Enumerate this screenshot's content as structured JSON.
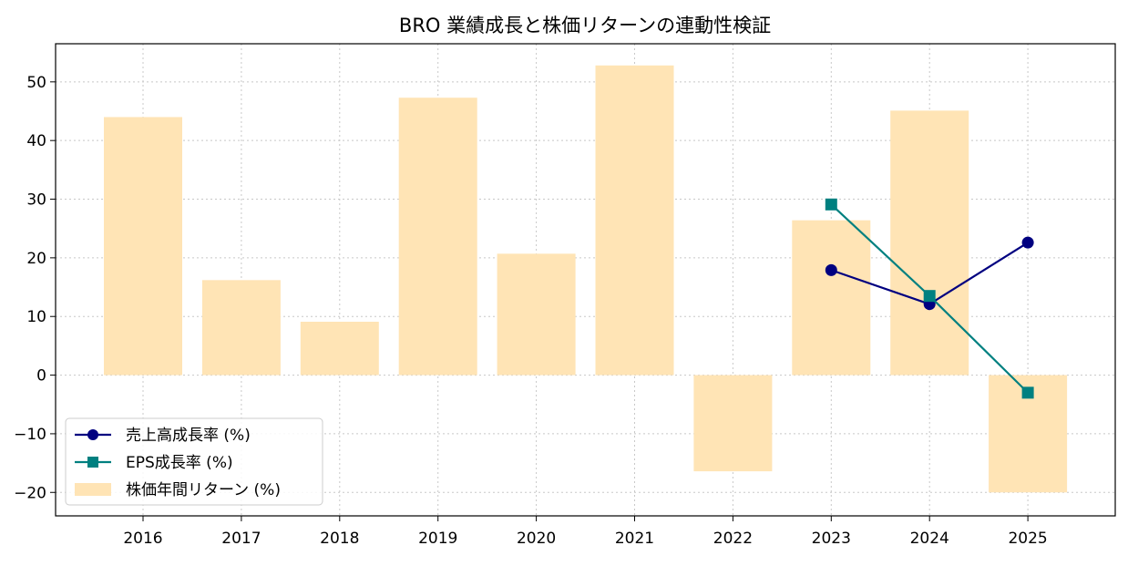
{
  "chart_data": {
    "type": "bar",
    "title": "BRO 業績成長と株価リターンの連動性検証",
    "xlabel": "",
    "ylabel": "",
    "categories": [
      "2016",
      "2017",
      "2018",
      "2019",
      "2020",
      "2021",
      "2022",
      "2023",
      "2024",
      "2025"
    ],
    "ylim": [
      -24,
      56.5
    ],
    "yticks": [
      -20,
      -10,
      0,
      10,
      20,
      30,
      40,
      50
    ],
    "ytick_labels": [
      "−20",
      "−10",
      "0",
      "10",
      "20",
      "30",
      "40",
      "50"
    ],
    "grid": true,
    "legend_position": "lower-left",
    "series": [
      {
        "name": "株価年間リターン (%)",
        "kind": "bar",
        "color": "#FFE4B5",
        "values": [
          44.0,
          16.2,
          9.1,
          47.3,
          20.7,
          52.8,
          -16.4,
          26.4,
          45.1,
          -20.0
        ]
      },
      {
        "name": "売上高成長率 (%)",
        "kind": "line",
        "marker": "circle",
        "color": "#000080",
        "values": [
          null,
          null,
          null,
          null,
          null,
          null,
          null,
          17.9,
          12.1,
          22.6
        ]
      },
      {
        "name": "EPS成長率 (%)",
        "kind": "line",
        "marker": "square",
        "color": "#008080",
        "values": [
          null,
          null,
          null,
          null,
          null,
          null,
          null,
          29.1,
          13.5,
          -3.0
        ]
      }
    ]
  }
}
